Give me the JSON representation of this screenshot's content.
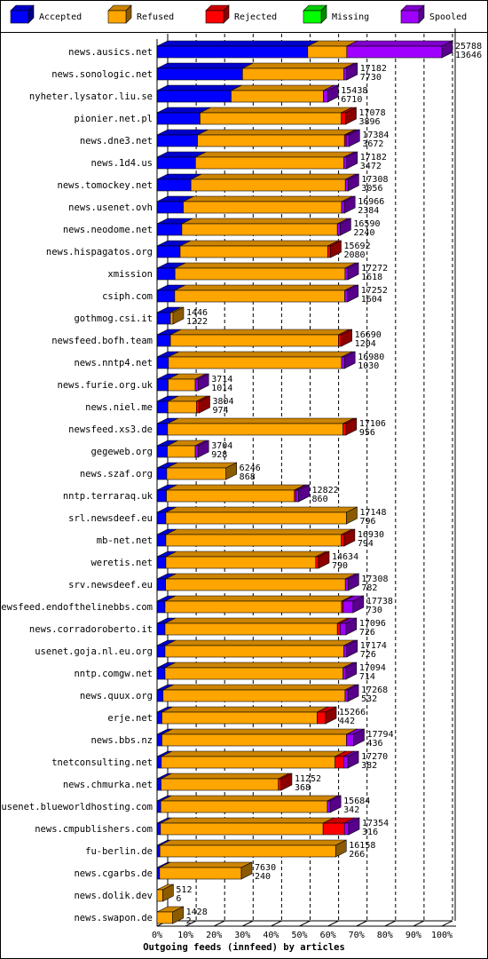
{
  "chart_data": {
    "type": "stacked-bar-3d",
    "orientation": "horizontal",
    "x_label": "Outgoing feeds (innfeed) by articles",
    "categories": [
      "news.ausics.net",
      "news.sonologic.net",
      "nyheter.lysator.liu.se",
      "pionier.net.pl",
      "news.dne3.net",
      "news.1d4.us",
      "news.tomockey.net",
      "news.usenet.ovh",
      "news.neodome.net",
      "news.hispagatos.org",
      "xmission",
      "csiph.com",
      "gothmog.csi.it",
      "newsfeed.bofh.team",
      "news.nntp4.net",
      "news.furie.org.uk",
      "news.niel.me",
      "newsfeed.xs3.de",
      "gegeweb.org",
      "news.szaf.org",
      "nntp.terraraq.uk",
      "srl.newsdeef.eu",
      "mb-net.net",
      "weretis.net",
      "srv.newsdeef.eu",
      "newsfeed.endofthelinebbs.com",
      "news.corradoroberto.it",
      "usenet.goja.nl.eu.org",
      "nntp.comgw.net",
      "news.quux.org",
      "erje.net",
      "news.bbs.nz",
      "tnetconsulting.net",
      "news.chmurka.net",
      "usenet.blueworldhosting.com",
      "news.cmpublishers.com",
      "fu-berlin.de",
      "news.cgarbs.de",
      "news.dolik.dev",
      "news.swapon.de"
    ],
    "series": [
      {
        "name": "Accepted",
        "color": "#0000ff",
        "values": [
          52.9,
          30.0,
          26.0,
          15.1,
          14.2,
          13.5,
          11.9,
          9.2,
          8.7,
          8.1,
          6.3,
          6.2,
          4.7,
          4.7,
          4.0,
          3.9,
          3.8,
          3.7,
          3.6,
          3.4,
          3.3,
          3.1,
          3.1,
          3.1,
          3.0,
          2.8,
          2.8,
          2.8,
          2.8,
          2.1,
          1.7,
          1.7,
          1.5,
          1.4,
          1.3,
          1.2,
          1.0,
          0.9,
          0.0,
          0.0
        ]
      },
      {
        "name": "Refused",
        "color": "#ffa500",
        "values": [
          13.7,
          35.6,
          32.4,
          49.6,
          51.6,
          52.1,
          54.2,
          55.6,
          54.6,
          51.8,
          59.7,
          59.7,
          0.9,
          59.0,
          60.8,
          9.5,
          10.0,
          61.6,
          9.8,
          20.8,
          44.9,
          63.4,
          61.6,
          52.6,
          63.1,
          62.0,
          60.5,
          62.8,
          62.5,
          63.9,
          54.5,
          64.8,
          61.0,
          41.2,
          58.5,
          57.1,
          61.7,
          28.7,
          2.0,
          5.5
        ]
      },
      {
        "name": "Rejected",
        "color": "#ff0000",
        "values": [
          0,
          0,
          0,
          1.5,
          0.6,
          0,
          0,
          0,
          0,
          1.0,
          0,
          0,
          0,
          1.0,
          0,
          0,
          1.0,
          1.0,
          0,
          0,
          0.5,
          0,
          1.0,
          1.0,
          0,
          0.5,
          1.0,
          0,
          0,
          0,
          3.0,
          0,
          3.0,
          1.0,
          0,
          7.5,
          0,
          0,
          0,
          0
        ]
      },
      {
        "name": "Missing",
        "color": "#00ff00",
        "values": [
          0,
          0,
          0,
          0,
          0,
          0,
          0,
          0,
          0,
          0,
          0,
          0,
          0,
          0,
          0,
          0,
          0,
          0,
          0,
          0,
          0,
          0,
          0,
          0,
          0,
          0,
          0,
          0,
          0,
          0,
          0,
          0,
          0,
          0,
          0,
          0,
          0,
          0,
          0,
          0
        ]
      },
      {
        "name": "Spooled",
        "color": "#a000ff",
        "values": [
          33.4,
          1.0,
          1.5,
          0,
          1.0,
          1.0,
          1.0,
          1.0,
          1.0,
          0,
          1.0,
          1.0,
          0,
          0,
          1.0,
          1.0,
          0,
          0,
          1.0,
          0,
          1.0,
          0,
          0,
          0,
          1.0,
          3.5,
          2.0,
          1.0,
          1.0,
          1.0,
          0,
          2.5,
          1.5,
          0,
          1.0,
          1.5,
          0,
          0,
          0,
          0
        ]
      }
    ],
    "row_labels": [
      [
        25788,
        13646
      ],
      [
        17182,
        7730
      ],
      [
        15438,
        6710
      ],
      [
        17078,
        3896
      ],
      [
        17384,
        3672
      ],
      [
        17182,
        3472
      ],
      [
        17308,
        3056
      ],
      [
        16966,
        2384
      ],
      [
        16590,
        2240
      ],
      [
        15692,
        2080
      ],
      [
        17272,
        1618
      ],
      [
        17252,
        1604
      ],
      [
        1446,
        1222
      ],
      [
        16690,
        1204
      ],
      [
        16980,
        1030
      ],
      [
        3714,
        1014
      ],
      [
        3804,
        974
      ],
      [
        17106,
        956
      ],
      [
        3704,
        928
      ],
      [
        6246,
        868
      ],
      [
        12822,
        860
      ],
      [
        17148,
        796
      ],
      [
        16930,
        794
      ],
      [
        14634,
        790
      ],
      [
        17308,
        782
      ],
      [
        17738,
        730
      ],
      [
        17096,
        726
      ],
      [
        17174,
        726
      ],
      [
        17094,
        714
      ],
      [
        17268,
        532
      ],
      [
        15266,
        442
      ],
      [
        17794,
        436
      ],
      [
        17270,
        382
      ],
      [
        11252,
        368
      ],
      [
        15684,
        342
      ],
      [
        17354,
        316
      ],
      [
        16158,
        266
      ],
      [
        7630,
        240
      ],
      [
        512,
        6
      ],
      [
        1428,
        2
      ]
    ],
    "xlim": [
      0,
      100
    ],
    "xticks": [
      {
        "value": 0,
        "label": "0%"
      },
      {
        "value": 10,
        "label": "10%"
      },
      {
        "value": 20,
        "label": "20%"
      },
      {
        "value": 30,
        "label": "30%"
      },
      {
        "value": 40,
        "label": "40%"
      },
      {
        "value": 50,
        "label": "50%"
      },
      {
        "value": 60,
        "label": "60%"
      },
      {
        "value": 70,
        "label": "70%"
      },
      {
        "value": 80,
        "label": "80%"
      },
      {
        "value": 90,
        "label": "90%"
      },
      {
        "value": 100,
        "label": "100%"
      }
    ],
    "grid": true
  }
}
